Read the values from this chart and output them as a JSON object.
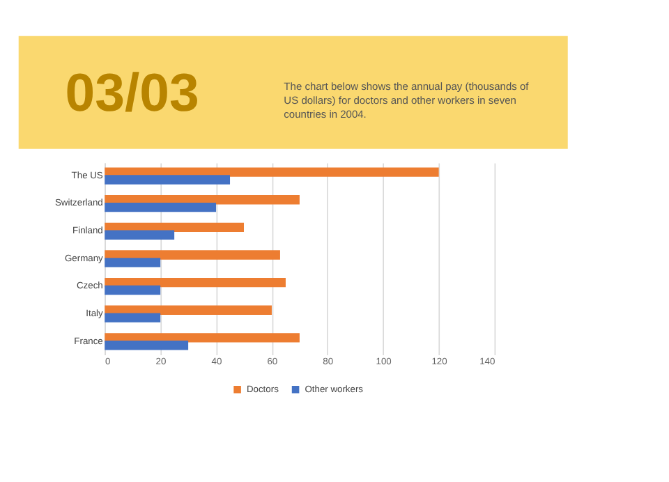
{
  "chart_data": {
    "type": "bar",
    "orientation": "horizontal",
    "title": "03/03",
    "subtitle": "The chart below shows the annual pay (thousands of US dollars) for doctors and other workers in seven countries in 2004.",
    "categories": [
      "The US",
      "Switzerland",
      "Finland",
      "Germany",
      "Czech",
      "Italy",
      "France"
    ],
    "series": [
      {
        "name": "Doctors",
        "color": "#ed7d31",
        "values": [
          120,
          70,
          50,
          63,
          65,
          60,
          70
        ]
      },
      {
        "name": "Other workers",
        "color": "#4472c4",
        "values": [
          45,
          40,
          25,
          20,
          20,
          20,
          30
        ]
      }
    ],
    "xlim": [
      0,
      140
    ],
    "xticks": [
      0,
      20,
      40,
      60,
      80,
      100,
      120,
      140
    ],
    "grid": "x",
    "legend": "bottom"
  }
}
